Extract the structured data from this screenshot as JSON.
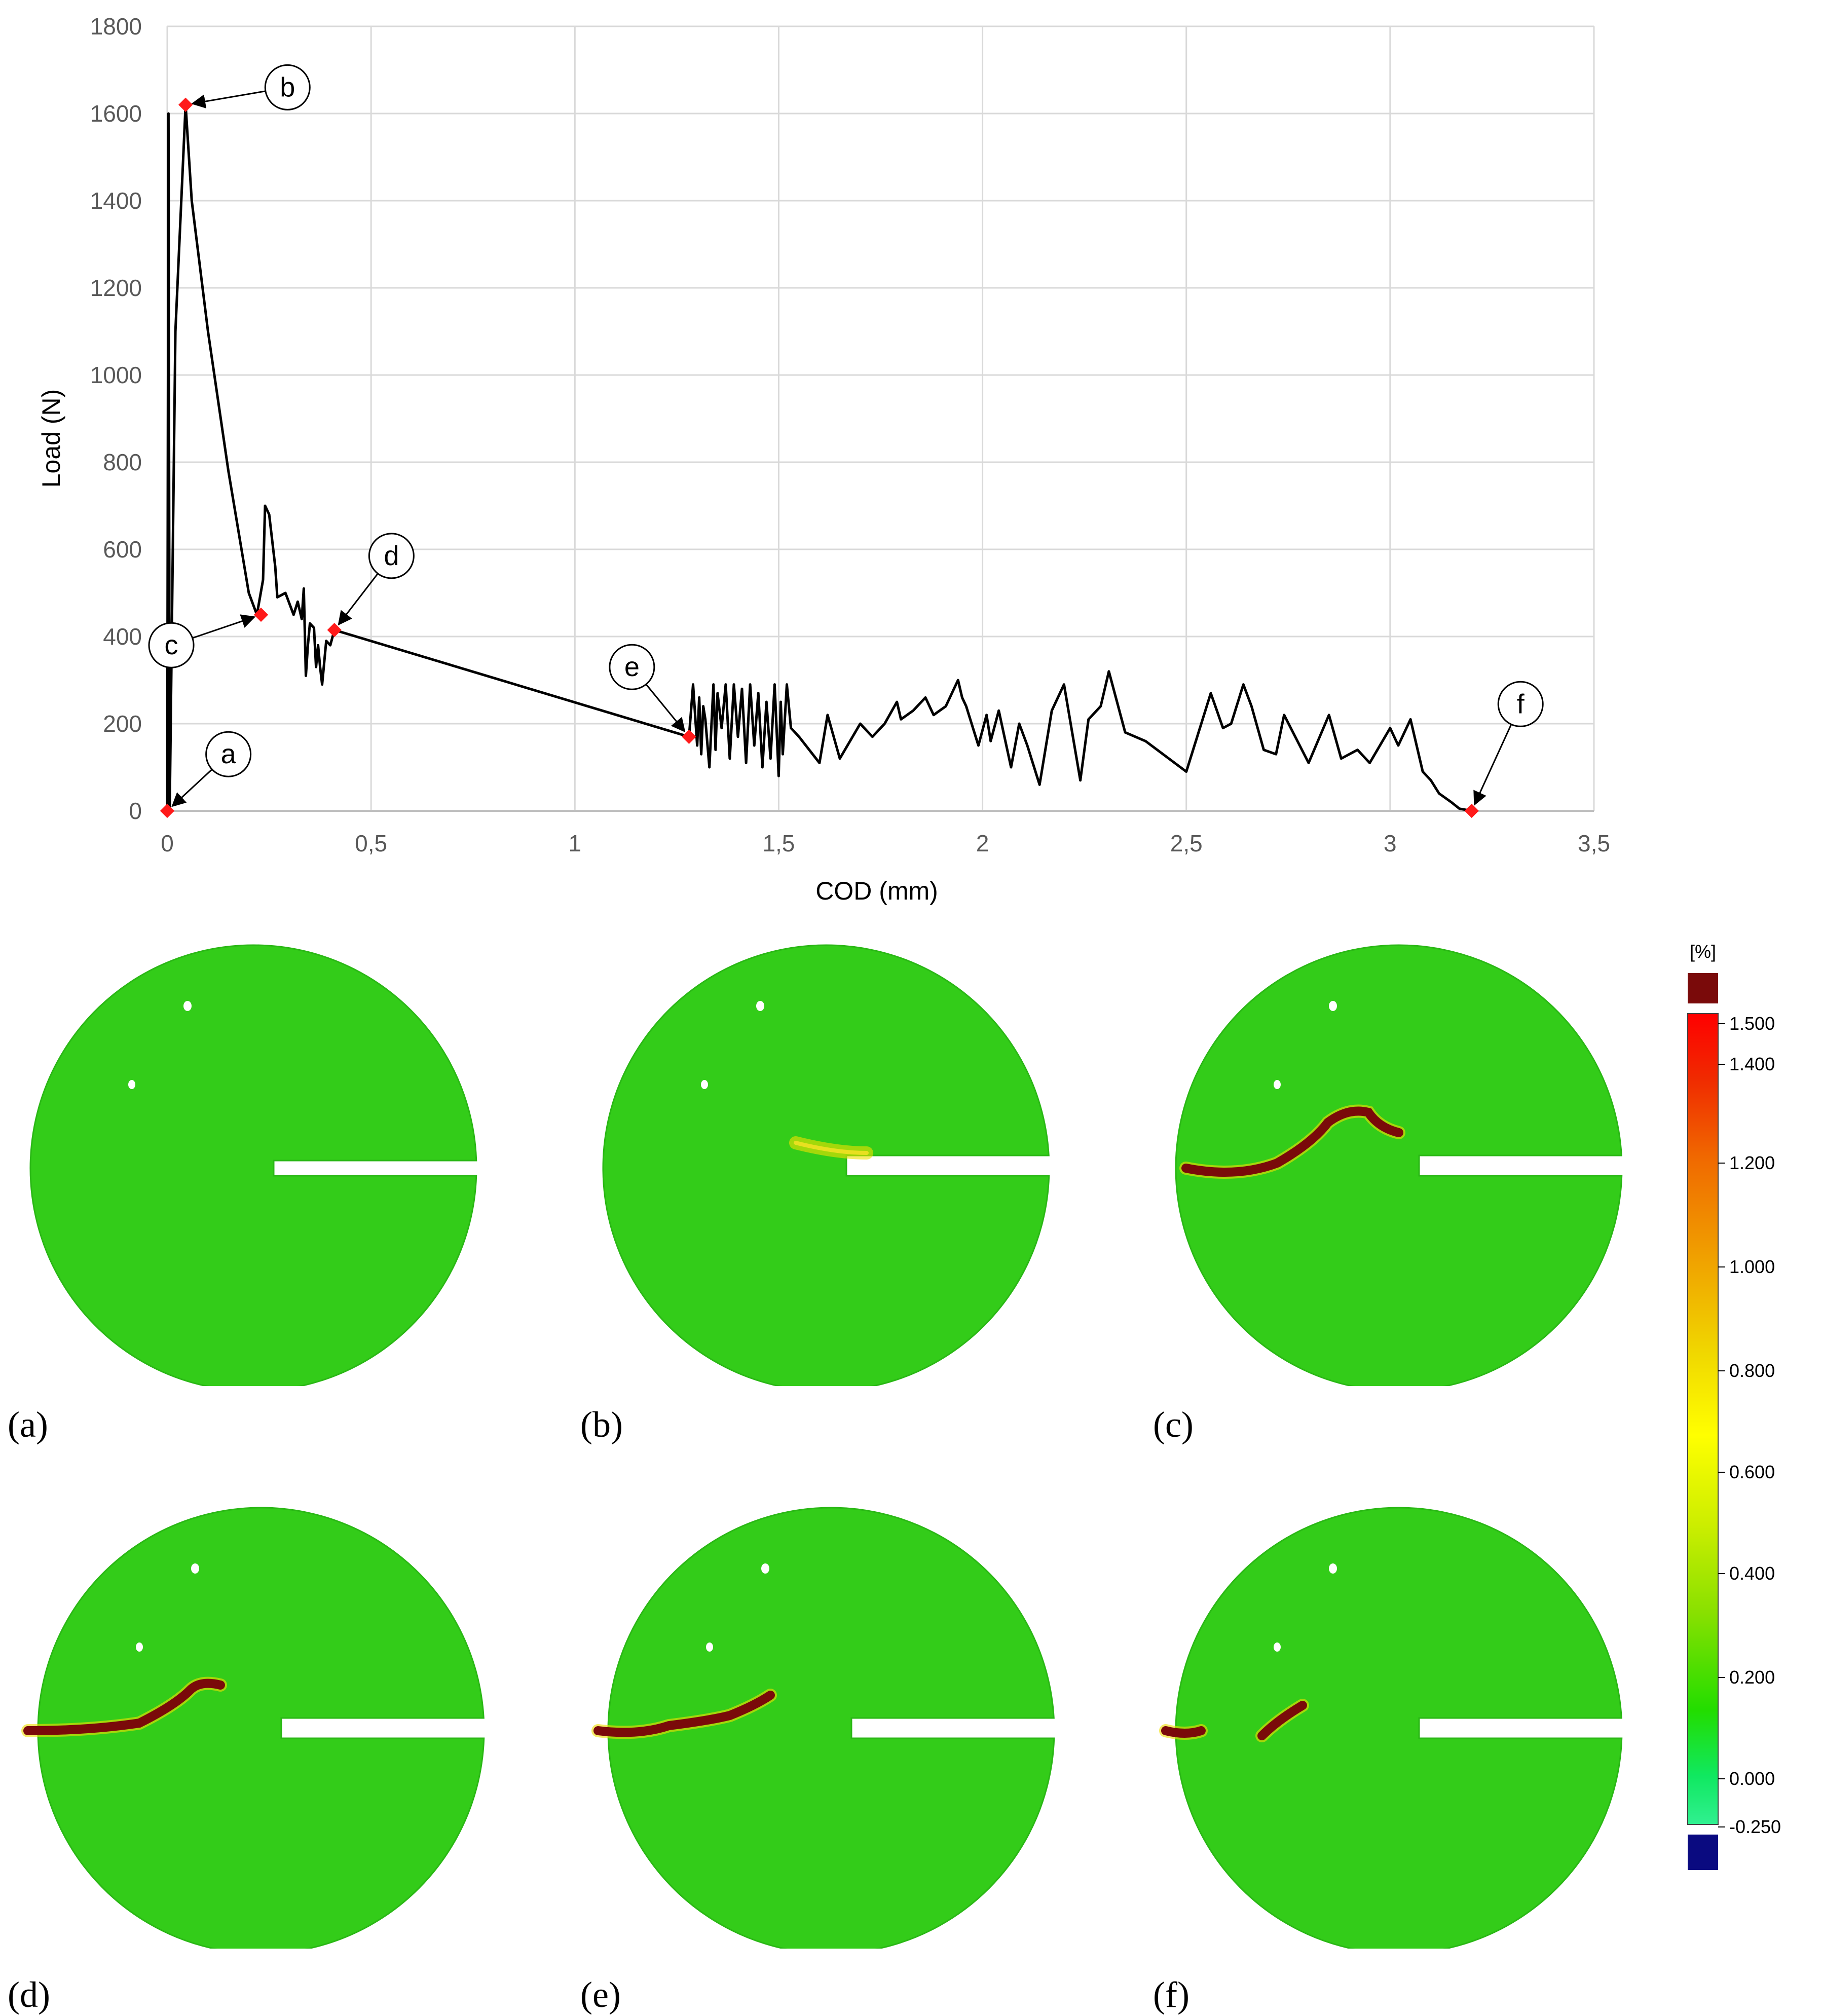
{
  "chart_data": {
    "type": "line",
    "xlabel": "COD (mm)",
    "ylabel": "Load (N)",
    "xlim": [
      0,
      3.5
    ],
    "ylim": [
      0,
      1800
    ],
    "x_ticks": [
      "0",
      "0,5",
      "1",
      "1,5",
      "2",
      "2,5",
      "3",
      "3,5"
    ],
    "y_ticks": [
      "0",
      "200",
      "400",
      "600",
      "800",
      "1000",
      "1200",
      "1400",
      "1600",
      "1800"
    ],
    "grid": true,
    "legend": "none",
    "series": [
      {
        "color": "#000000",
        "x": [
          0,
          0.003,
          0.006,
          0.02,
          0.045,
          0.06,
          0.1,
          0.15,
          0.2,
          0.22,
          0.235,
          0.24,
          0.25,
          0.265,
          0.27,
          0.29,
          0.31,
          0.32,
          0.33,
          0.335,
          0.34,
          0.345,
          0.35,
          0.36,
          0.365,
          0.37,
          0.375,
          0.38,
          0.39,
          0.4,
          0.41,
          1.28,
          1.29,
          1.3,
          1.305,
          1.31,
          1.315,
          1.32,
          1.33,
          1.34,
          1.345,
          1.35,
          1.36,
          1.37,
          1.38,
          1.39,
          1.4,
          1.41,
          1.42,
          1.43,
          1.44,
          1.45,
          1.46,
          1.47,
          1.48,
          1.49,
          1.5,
          1.505,
          1.51,
          1.52,
          1.53,
          1.55,
          1.6,
          1.62,
          1.65,
          1.7,
          1.73,
          1.76,
          1.79,
          1.8,
          1.83,
          1.86,
          1.88,
          1.91,
          1.94,
          1.95,
          1.96,
          1.99,
          2.01,
          2.02,
          2.04,
          2.07,
          2.09,
          2.11,
          2.14,
          2.17,
          2.2,
          2.24,
          2.26,
          2.29,
          2.31,
          2.35,
          2.4,
          2.5,
          2.56,
          2.59,
          2.61,
          2.64,
          2.66,
          2.69,
          2.72,
          2.74,
          2.8,
          2.85,
          2.88,
          2.92,
          2.95,
          3.0,
          3.02,
          3.05,
          3.08,
          3.1,
          3.12,
          3.15,
          3.17,
          3.2
        ],
        "y": [
          0,
          1600,
          0,
          1100,
          1620,
          1400,
          1100,
          780,
          500,
          450,
          530,
          700,
          680,
          560,
          490,
          500,
          450,
          480,
          440,
          510,
          310,
          380,
          430,
          420,
          330,
          380,
          330,
          290,
          390,
          380,
          415,
          170,
          290,
          150,
          260,
          130,
          240,
          210,
          100,
          290,
          140,
          270,
          190,
          290,
          120,
          290,
          170,
          280,
          110,
          290,
          150,
          270,
          100,
          250,
          120,
          290,
          80,
          250,
          130,
          290,
          190,
          170,
          110,
          220,
          120,
          200,
          170,
          200,
          250,
          210,
          230,
          260,
          220,
          240,
          300,
          260,
          240,
          150,
          220,
          160,
          230,
          100,
          200,
          150,
          60,
          230,
          290,
          70,
          210,
          240,
          320,
          180,
          160,
          90,
          270,
          190,
          200,
          290,
          240,
          140,
          130,
          220,
          110,
          220,
          120,
          140,
          110,
          190,
          150,
          210,
          90,
          70,
          40,
          20,
          5,
          0
        ]
      }
    ],
    "markers": [
      {
        "label": "a",
        "x": 0.0,
        "y": 0,
        "label_dx": 0.15,
        "label_dy": 130
      },
      {
        "label": "b",
        "x": 0.045,
        "y": 1620,
        "label_dx": 0.25,
        "label_dy": 40
      },
      {
        "label": "c",
        "x": 0.23,
        "y": 450,
        "label_dx": -0.22,
        "label_dy": -70
      },
      {
        "label": "d",
        "x": 0.41,
        "y": 415,
        "label_dx": 0.14,
        "label_dy": 170
      },
      {
        "label": "e",
        "x": 1.28,
        "y": 170,
        "label_dx": -0.14,
        "label_dy": 160
      },
      {
        "label": "f",
        "x": 3.2,
        "y": 0,
        "label_dx": 0.12,
        "label_dy": 245
      }
    ]
  },
  "panels": [
    {
      "caption": "(a)"
    },
    {
      "caption": "(b)"
    },
    {
      "caption": "(c)"
    },
    {
      "caption": "(d)"
    },
    {
      "caption": "(e)"
    },
    {
      "caption": "(f)"
    }
  ],
  "colorbar": {
    "unit": "[%]",
    "ticks": [
      "1.500",
      "1.400",
      "1.200",
      "1.000",
      "0.800",
      "0.600",
      "0.400",
      "0.200",
      "0.000",
      "-0.250"
    ],
    "over_color": "#7a0a0a",
    "under_color": "#0a0a80"
  }
}
